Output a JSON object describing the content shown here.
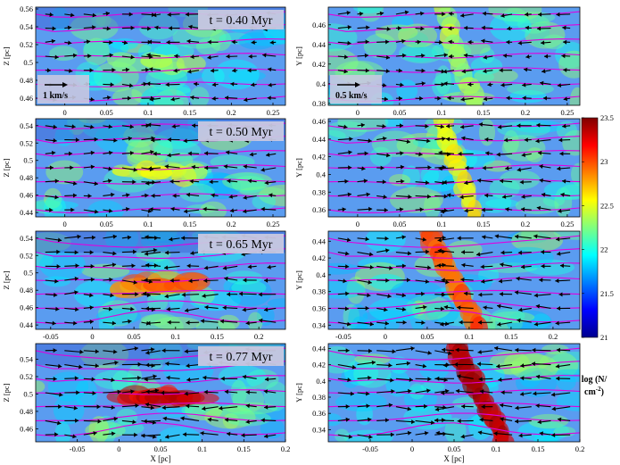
{
  "chart_data": {
    "type": "heatmap",
    "colorbar": {
      "label_line1": "log (N/",
      "label_line2": "cm",
      "label_sup": "-2",
      "label_close": ")",
      "range": [
        21,
        23.5
      ],
      "ticks": [
        "23.5",
        "23",
        "22.5",
        "22",
        "21.5",
        "21"
      ],
      "colormap": [
        "#00008f",
        "#0000ff",
        "#007fff",
        "#00ffff",
        "#7fff7f",
        "#ffff00",
        "#ff7f00",
        "#ff0000",
        "#7f0000"
      ]
    },
    "colors": {
      "field_lines": "#e000e0",
      "arrows": "#000000"
    },
    "panels": [
      {
        "id": "xz-0.40",
        "view": "xz",
        "time_label": "t = 0.40 Myr",
        "scale_label": "1 km/s",
        "xlim": [
          -0.035,
          0.265
        ],
        "ylim": [
          0.452,
          0.562
        ],
        "xticks": [
          "0",
          "0.05",
          "0.1",
          "0.15",
          "0.2",
          "0.25"
        ],
        "xtick_values": [
          0,
          0.05,
          0.1,
          0.15,
          0.2,
          0.25
        ],
        "ylabel": "Z [pc]",
        "yticks": [
          "0.56",
          "0.54",
          "0.52",
          "0.5",
          "0.48",
          "0.46"
        ],
        "ytick_values": [
          0.56,
          0.54,
          0.52,
          0.5,
          0.48,
          0.46
        ],
        "xlabel": ""
      },
      {
        "id": "xy-0.40",
        "view": "xy",
        "time_label": "",
        "scale_label": "0.5 km/s",
        "xlim": [
          -0.035,
          0.265
        ],
        "ylim": [
          0.378,
          0.478
        ],
        "xticks": [
          "0",
          "0.05",
          "0.1",
          "0.15",
          "0.2",
          "0.25"
        ],
        "xtick_values": [
          0,
          0.05,
          0.1,
          0.15,
          0.2,
          0.25
        ],
        "ylabel": "Y [pc]",
        "yticks": [
          "0.46",
          "0.44",
          "0.42",
          "0.4",
          "0.38"
        ],
        "ytick_values": [
          0.46,
          0.44,
          0.42,
          0.4,
          0.38
        ],
        "xlabel": ""
      },
      {
        "id": "xz-0.50",
        "view": "xz",
        "time_label": "t = 0.50 Myr",
        "scale_label": "",
        "xlim": [
          -0.035,
          0.265
        ],
        "ylim": [
          0.435,
          0.548
        ],
        "xticks": [
          "0",
          "0.05",
          "0.1",
          "0.15",
          "0.2",
          "0.25"
        ],
        "xtick_values": [
          0,
          0.05,
          0.1,
          0.15,
          0.2,
          0.25
        ],
        "ylabel": "Z [pc]",
        "yticks": [
          "0.54",
          "0.52",
          "0.5",
          "0.48",
          "0.46",
          "0.44"
        ],
        "ytick_values": [
          0.54,
          0.52,
          0.5,
          0.48,
          0.46,
          0.44
        ],
        "xlabel": ""
      },
      {
        "id": "xy-0.50",
        "view": "xy",
        "time_label": "",
        "scale_label": "",
        "xlim": [
          -0.035,
          0.265
        ],
        "ylim": [
          0.352,
          0.463
        ],
        "xticks": [
          "0",
          "0.05",
          "0.1",
          "0.15",
          "0.2",
          "0.25"
        ],
        "xtick_values": [
          0,
          0.05,
          0.1,
          0.15,
          0.2,
          0.25
        ],
        "ylabel": "Y [pc]",
        "yticks": [
          "0.46",
          "0.44",
          "0.42",
          "0.4",
          "0.38",
          "0.36"
        ],
        "ytick_values": [
          0.46,
          0.44,
          0.42,
          0.4,
          0.38,
          0.36
        ],
        "xlabel": ""
      },
      {
        "id": "xz-0.65",
        "view": "xz",
        "time_label": "t = 0.65 Myr",
        "scale_label": "",
        "xlim": [
          -0.068,
          0.232
        ],
        "ylim": [
          0.435,
          0.548
        ],
        "xticks": [
          "-0.05",
          "0",
          "0.05",
          "0.1",
          "0.15",
          "0.2"
        ],
        "xtick_values": [
          -0.05,
          0,
          0.05,
          0.1,
          0.15,
          0.2
        ],
        "ylabel": "Z [pc]",
        "yticks": [
          "0.54",
          "0.52",
          "0.5",
          "0.48",
          "0.46",
          "0.44"
        ],
        "ytick_values": [
          0.54,
          0.52,
          0.5,
          0.48,
          0.46,
          0.44
        ],
        "xlabel": ""
      },
      {
        "id": "xy-0.65",
        "view": "xy",
        "time_label": "",
        "scale_label": "",
        "xlim": [
          -0.068,
          0.232
        ],
        "ylim": [
          0.335,
          0.452
        ],
        "xticks": [
          "-0.05",
          "0",
          "0.05",
          "0.1",
          "0.15",
          "0.2"
        ],
        "xtick_values": [
          -0.05,
          0,
          0.05,
          0.1,
          0.15,
          0.2
        ],
        "ylabel": "Y [pc]",
        "yticks": [
          "0.44",
          "0.42",
          "0.4",
          "0.38",
          "0.36",
          "0.34"
        ],
        "ytick_values": [
          0.44,
          0.42,
          0.4,
          0.38,
          0.36,
          0.34
        ],
        "xlabel": ""
      },
      {
        "id": "xz-0.77",
        "view": "xz",
        "time_label": "t = 0.77 Myr",
        "scale_label": "",
        "xlim": [
          -0.1,
          0.2
        ],
        "ylim": [
          0.445,
          0.558
        ],
        "xticks": [
          "-0.05",
          "0",
          "0.05",
          "0.1",
          "0.15",
          "0.2"
        ],
        "xtick_values": [
          -0.05,
          0,
          0.05,
          0.1,
          0.15,
          0.2
        ],
        "ylabel": "Z [pc]",
        "yticks": [
          "0.54",
          "0.52",
          "0.5",
          "0.48",
          "0.46"
        ],
        "ytick_values": [
          0.54,
          0.52,
          0.5,
          0.48,
          0.46
        ],
        "xlabel": "X [pc]"
      },
      {
        "id": "xy-0.77",
        "view": "xy",
        "time_label": "",
        "scale_label": "",
        "xlim": [
          -0.1,
          0.2
        ],
        "ylim": [
          0.325,
          0.446
        ],
        "xticks": [
          "-0.05",
          "0",
          "0.05",
          "0.1",
          "0.15",
          "0.2"
        ],
        "xtick_values": [
          -0.05,
          0,
          0.05,
          0.1,
          0.15,
          0.2
        ],
        "ylabel": "Y [pc]",
        "yticks": [
          "0.44",
          "0.42",
          "0.4",
          "0.38",
          "0.36",
          "0.34"
        ],
        "ytick_values": [
          0.44,
          0.42,
          0.4,
          0.38,
          0.36,
          0.34
        ],
        "xlabel": "X [pc]"
      }
    ]
  }
}
